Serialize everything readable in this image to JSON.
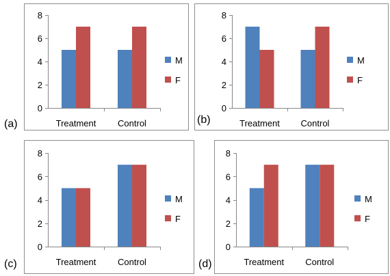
{
  "colors": {
    "M": "#4F81BD",
    "F": "#C0504D",
    "frame": "#8c8c8c",
    "axis": "#868686"
  },
  "chart_data": [
    {
      "type": "bar",
      "label": "(a)",
      "categories": [
        "Treatment",
        "Control"
      ],
      "ylim": [
        0,
        8
      ],
      "yticks": [
        "0",
        "2",
        "4",
        "6",
        "8"
      ],
      "grid": false,
      "legend": "right",
      "series": [
        {
          "name": "M",
          "values": [
            5,
            5
          ]
        },
        {
          "name": "F",
          "values": [
            7,
            7
          ]
        }
      ]
    },
    {
      "type": "bar",
      "label": "(b)",
      "categories": [
        "Treatment",
        "Control"
      ],
      "ylim": [
        0,
        8
      ],
      "yticks": [
        "0",
        "2",
        "4",
        "6",
        "8"
      ],
      "grid": false,
      "legend": "right",
      "series": [
        {
          "name": "M",
          "values": [
            7,
            5
          ]
        },
        {
          "name": "F",
          "values": [
            5,
            7
          ]
        }
      ]
    },
    {
      "type": "bar",
      "label": "(c)",
      "categories": [
        "Treatment",
        "Control"
      ],
      "ylim": [
        0,
        8
      ],
      "yticks": [
        "0",
        "2",
        "4",
        "6",
        "8"
      ],
      "grid": false,
      "legend": "right",
      "series": [
        {
          "name": "M",
          "values": [
            5,
            7
          ]
        },
        {
          "name": "F",
          "values": [
            5,
            7
          ]
        }
      ]
    },
    {
      "type": "bar",
      "label": "(d)",
      "categories": [
        "Treatment",
        "Control"
      ],
      "ylim": [
        0,
        8
      ],
      "yticks": [
        "0",
        "2",
        "4",
        "6",
        "8"
      ],
      "grid": false,
      "legend": "right",
      "series": [
        {
          "name": "M",
          "values": [
            5,
            7
          ]
        },
        {
          "name": "F",
          "values": [
            7,
            7
          ]
        }
      ]
    }
  ]
}
